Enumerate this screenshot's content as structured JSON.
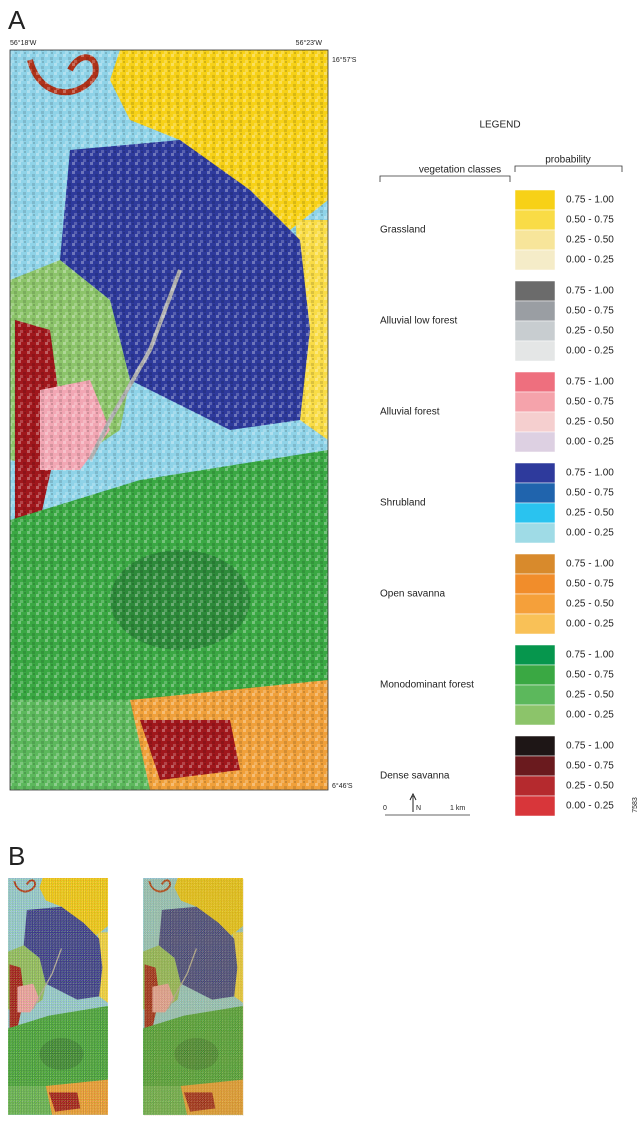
{
  "panel_a": {
    "label": "A",
    "coords": {
      "top_left": "56°18'W",
      "top_right": "56°23'W",
      "right_top": "16°57'S",
      "right_bottom": "6°46'S"
    }
  },
  "legend": {
    "title": "LEGEND",
    "probability_header": "probability",
    "classes_header": "vegetation classes",
    "classes": [
      {
        "name": "Grassland",
        "swatches": [
          {
            "label": "0.75 - 1.00",
            "color": "#f7d117"
          },
          {
            "label": "0.50 - 0.75",
            "color": "#f9dc46"
          },
          {
            "label": "0.25 - 0.50",
            "color": "#f7e59a"
          },
          {
            "label": "0.00 - 0.25",
            "color": "#f5ecc8"
          }
        ]
      },
      {
        "name": "Alluvial low forest",
        "swatches": [
          {
            "label": "0.75 - 1.00",
            "color": "#6b6b6b"
          },
          {
            "label": "0.50 - 0.75",
            "color": "#9a9ea3"
          },
          {
            "label": "0.25 - 0.50",
            "color": "#c8cdd0"
          },
          {
            "label": "0.00 - 0.25",
            "color": "#e4e6e6"
          }
        ]
      },
      {
        "name": "Alluvial forest",
        "swatches": [
          {
            "label": "0.75 - 1.00",
            "color": "#ee6f7e"
          },
          {
            "label": "0.50 - 0.75",
            "color": "#f5a3ab"
          },
          {
            "label": "0.25 - 0.50",
            "color": "#f5cfcf"
          },
          {
            "label": "0.00 - 0.25",
            "color": "#ddd0e2"
          }
        ]
      },
      {
        "name": "Shrubland",
        "swatches": [
          {
            "label": "0.75 - 1.00",
            "color": "#2e3a9c"
          },
          {
            "label": "0.50 - 0.75",
            "color": "#2064ad"
          },
          {
            "label": "0.25 - 0.50",
            "color": "#2ac3ef"
          },
          {
            "label": "0.00 - 0.25",
            "color": "#9fdbe6"
          }
        ]
      },
      {
        "name": "Open savanna",
        "swatches": [
          {
            "label": "0.75 - 1.00",
            "color": "#d88a2c"
          },
          {
            "label": "0.50 - 0.75",
            "color": "#f18d2b"
          },
          {
            "label": "0.25 - 0.50",
            "color": "#f5a03a"
          },
          {
            "label": "0.00 - 0.25",
            "color": "#f9c157"
          }
        ]
      },
      {
        "name": "Monodominant forest",
        "swatches": [
          {
            "label": "0.75 - 1.00",
            "color": "#06964d"
          },
          {
            "label": "0.50 - 0.75",
            "color": "#3aa843"
          },
          {
            "label": "0.25 - 0.50",
            "color": "#5cb85c"
          },
          {
            "label": "0.00 - 0.25",
            "color": "#8cc46a"
          }
        ]
      },
      {
        "name": "Dense savanna",
        "swatches": [
          {
            "label": "0.75 - 1.00",
            "color": "#1e1616"
          },
          {
            "label": "0.50 - 0.75",
            "color": "#6a1a1e"
          },
          {
            "label": "0.25 - 0.50",
            "color": "#b52a2e"
          },
          {
            "label": "0.00 - 0.25",
            "color": "#d8363a"
          }
        ]
      }
    ]
  },
  "scale_bar": {
    "start": "0",
    "north": "N",
    "end": "1 km"
  },
  "figure_id": "7583",
  "panel_b": {
    "label": "B"
  }
}
